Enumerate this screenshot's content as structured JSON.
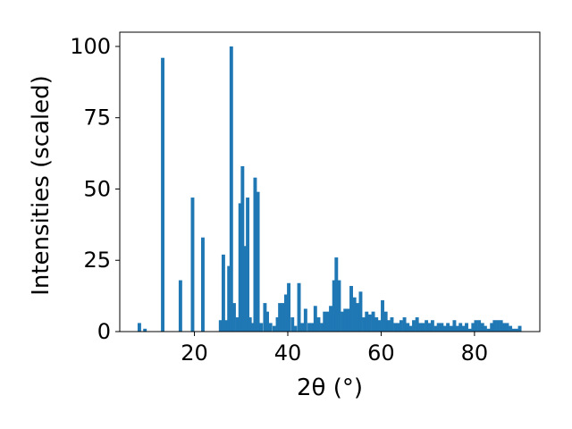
{
  "chart_data": {
    "type": "bar",
    "xlabel": "2θ (°)",
    "ylabel": "Intensities (scaled)",
    "xlim": [
      4,
      94
    ],
    "ylim": [
      0,
      105
    ],
    "xticks": [
      20,
      40,
      60,
      80
    ],
    "yticks": [
      0,
      25,
      50,
      75,
      100
    ],
    "xtick_labels": [
      "20",
      "40",
      "60",
      "80"
    ],
    "ytick_labels": [
      "0",
      "25",
      "50",
      "75",
      "100"
    ],
    "bar_color": "#1f77b4",
    "bar_width": 0.75,
    "grid": false,
    "x": [
      8.2,
      9.4,
      13.2,
      17.0,
      19.6,
      21.8,
      25.6,
      26.2,
      26.8,
      27.4,
      27.9,
      28.5,
      29.2,
      29.8,
      30.3,
      30.8,
      31.4,
      31.9,
      32.4,
      33.0,
      33.6,
      34.3,
      35.1,
      35.6,
      36.3,
      37.1,
      37.8,
      38.3,
      38.9,
      39.6,
      40.2,
      41.0,
      41.6,
      42.4,
      43.1,
      43.8,
      44.6,
      45.3,
      45.9,
      46.6,
      47.3,
      47.9,
      48.6,
      49.2,
      49.9,
      50.4,
      51.0,
      51.7,
      52.3,
      53.0,
      53.6,
      54.3,
      55.0,
      55.6,
      56.3,
      56.9,
      57.6,
      58.3,
      59.0,
      59.6,
      60.3,
      61.0,
      61.7,
      62.3,
      63.0,
      63.7,
      64.3,
      65.0,
      65.7,
      66.3,
      67.0,
      67.7,
      68.3,
      69.0,
      69.7,
      70.3,
      71.0,
      71.7,
      72.3,
      73.0,
      73.7,
      74.3,
      75.0,
      75.7,
      76.3,
      77.0,
      77.7,
      78.3,
      79.0,
      79.7,
      80.3,
      81.0,
      81.7,
      82.3,
      83.0,
      83.7,
      84.3,
      85.0,
      85.7,
      86.3,
      87.0,
      87.7,
      88.3,
      89.0,
      89.7
    ],
    "values": [
      3,
      1,
      96,
      18,
      47,
      33,
      4,
      27,
      4,
      23,
      100,
      10,
      5,
      45,
      58,
      30,
      47,
      5,
      3,
      54,
      49,
      3,
      10,
      7,
      3,
      2,
      5,
      10,
      10,
      13,
      17,
      5,
      2,
      17,
      3,
      8,
      3,
      3,
      9,
      5,
      3,
      7,
      7,
      9,
      18,
      26,
      18,
      7,
      8,
      8,
      16,
      12,
      10,
      14,
      5,
      7,
      6,
      7,
      5,
      4,
      11,
      7,
      4,
      5,
      3,
      3,
      4,
      5,
      3,
      2,
      4,
      5,
      3,
      3,
      4,
      3,
      4,
      2,
      3,
      3,
      2,
      3,
      2,
      4,
      2,
      3,
      2,
      3,
      1,
      3,
      4,
      4,
      3,
      2,
      1,
      3,
      4,
      4,
      4,
      3,
      3,
      2,
      1,
      1,
      2
    ]
  }
}
